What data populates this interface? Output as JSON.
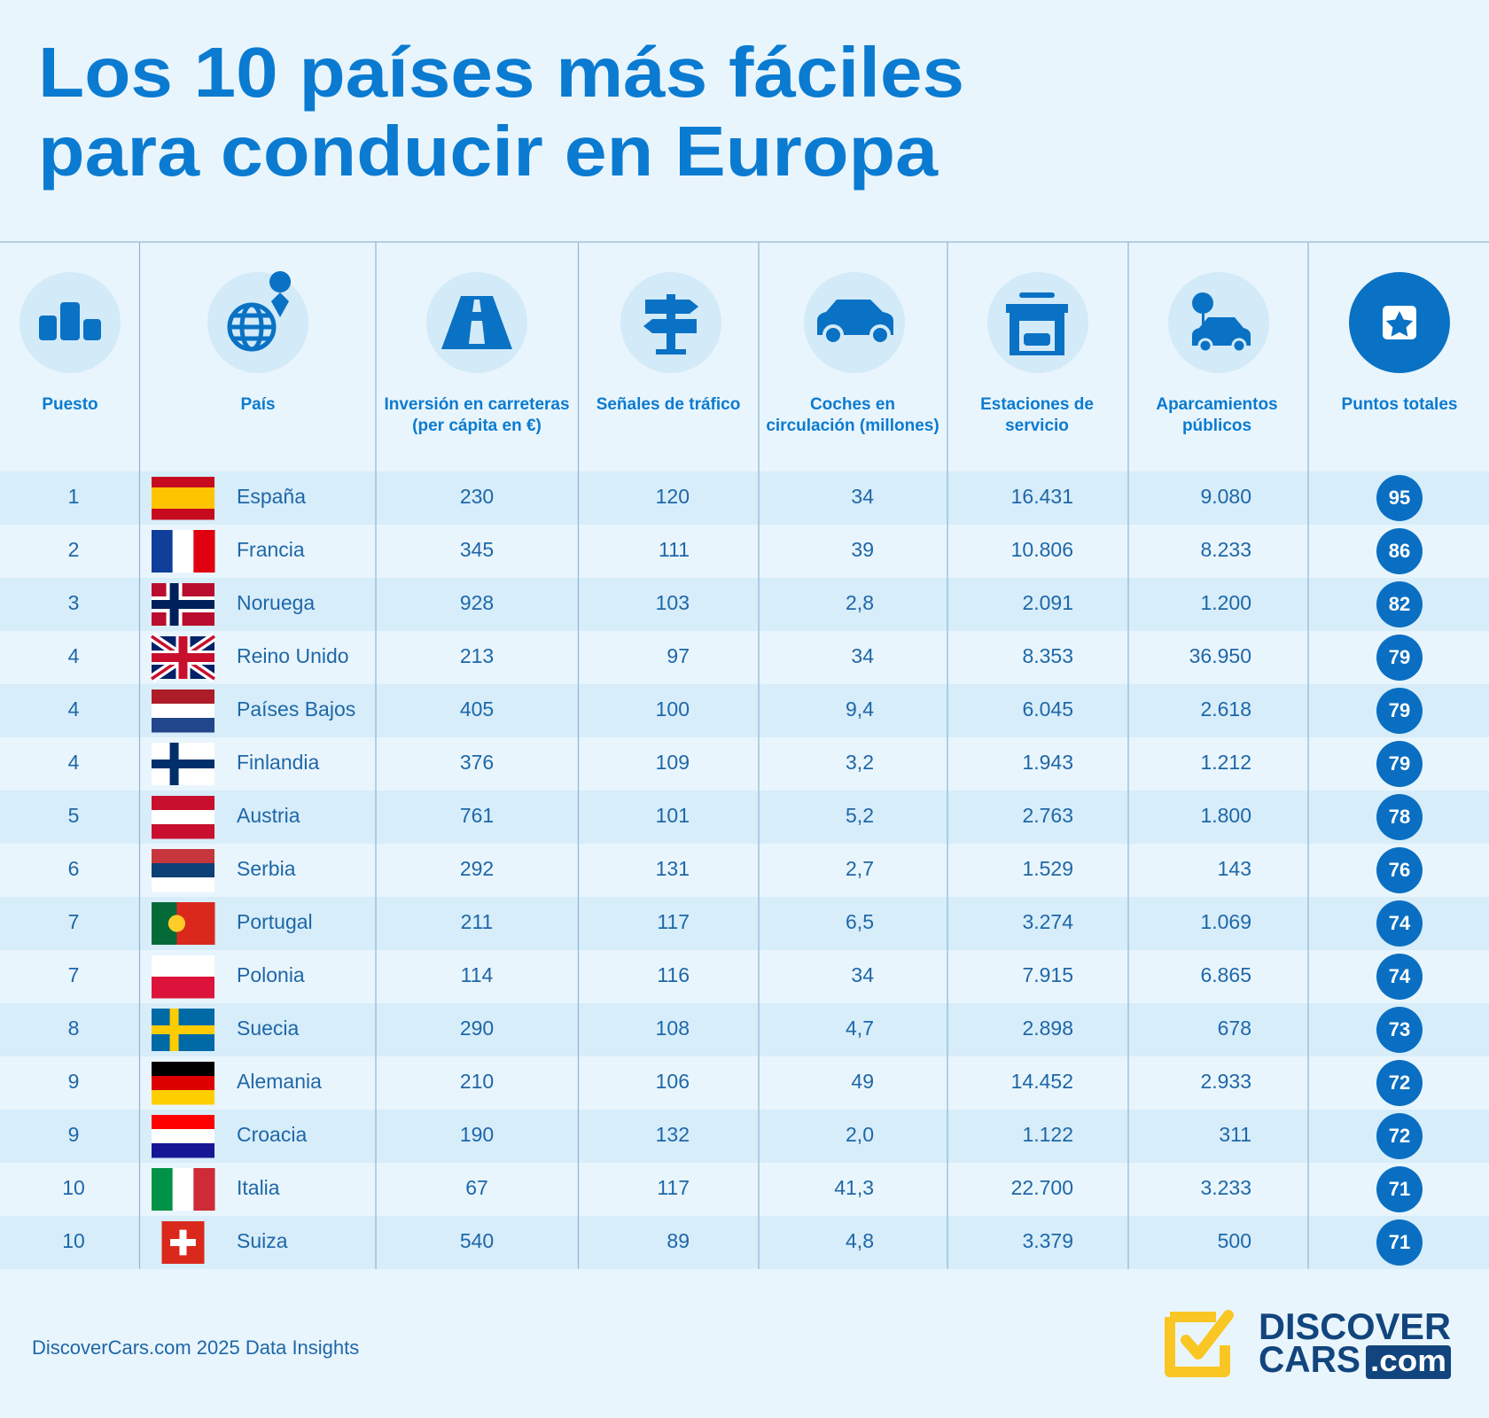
{
  "header": {
    "title_lines": [
      "Los 10 países más fáciles",
      "para conducir en Europa"
    ]
  },
  "table": {
    "columns": [
      [
        "Puesto"
      ],
      [
        "País"
      ],
      [
        "Inversión en carreteras",
        "(per cápita en €)"
      ],
      [
        "Señales de tráfico"
      ],
      [
        "Coches en",
        "circulación (millones)"
      ],
      [
        "Estaciones de",
        "servicio"
      ],
      [
        "Aparcamientos",
        "públicos"
      ],
      [
        "Puntos totales"
      ]
    ],
    "rows": [
      [
        "1",
        "España",
        "230",
        "120",
        "34",
        "16.431",
        "9.080",
        "95"
      ],
      [
        "2",
        "Francia",
        "345",
        "111",
        "39",
        "10.806",
        "8.233",
        "86"
      ],
      [
        "3",
        "Noruega",
        "928",
        "103",
        "2,8",
        "2.091",
        "1.200",
        "82"
      ],
      [
        "4",
        "Reino Unido",
        "213",
        "97",
        "34",
        "8.353",
        "36.950",
        "79"
      ],
      [
        "4",
        "Países Bajos",
        "405",
        "100",
        "9,4",
        "6.045",
        "2.618",
        "79"
      ],
      [
        "4",
        "Finlandia",
        "376",
        "109",
        "3,2",
        "1.943",
        "1.212",
        "79"
      ],
      [
        "5",
        "Austria",
        "761",
        "101",
        "5,2",
        "2.763",
        "1.800",
        "78"
      ],
      [
        "6",
        "Serbia",
        "292",
        "131",
        "2,7",
        "1.529",
        "143",
        "76"
      ],
      [
        "7",
        "Portugal",
        "211",
        "117",
        "6,5",
        "3.274",
        "1.069",
        "74"
      ],
      [
        "7",
        "Polonia",
        "114",
        "116",
        "34",
        "7.915",
        "6.865",
        "74"
      ],
      [
        "8",
        "Suecia",
        "290",
        "108",
        "4,7",
        "2.898",
        "678",
        "73"
      ],
      [
        "9",
        "Alemania",
        "210",
        "106",
        "49",
        "14.452",
        "2.933",
        "72"
      ],
      [
        "9",
        "Croacia",
        "190",
        "132",
        "2,0",
        "1.122",
        "311",
        "72"
      ],
      [
        "10",
        "Italia",
        "67",
        "117",
        "41,3",
        "22.700",
        "3.233",
        "71"
      ],
      [
        "10",
        "Suiza",
        "540",
        "89",
        "4,8",
        "3.379",
        "500",
        "71"
      ]
    ]
  },
  "footer": {
    "source": "DiscoverCars.com 2025 Data Insights",
    "logo_line1": "DISCOVER",
    "logo_line2": "CARS",
    "logo_suffix": ".com"
  }
}
